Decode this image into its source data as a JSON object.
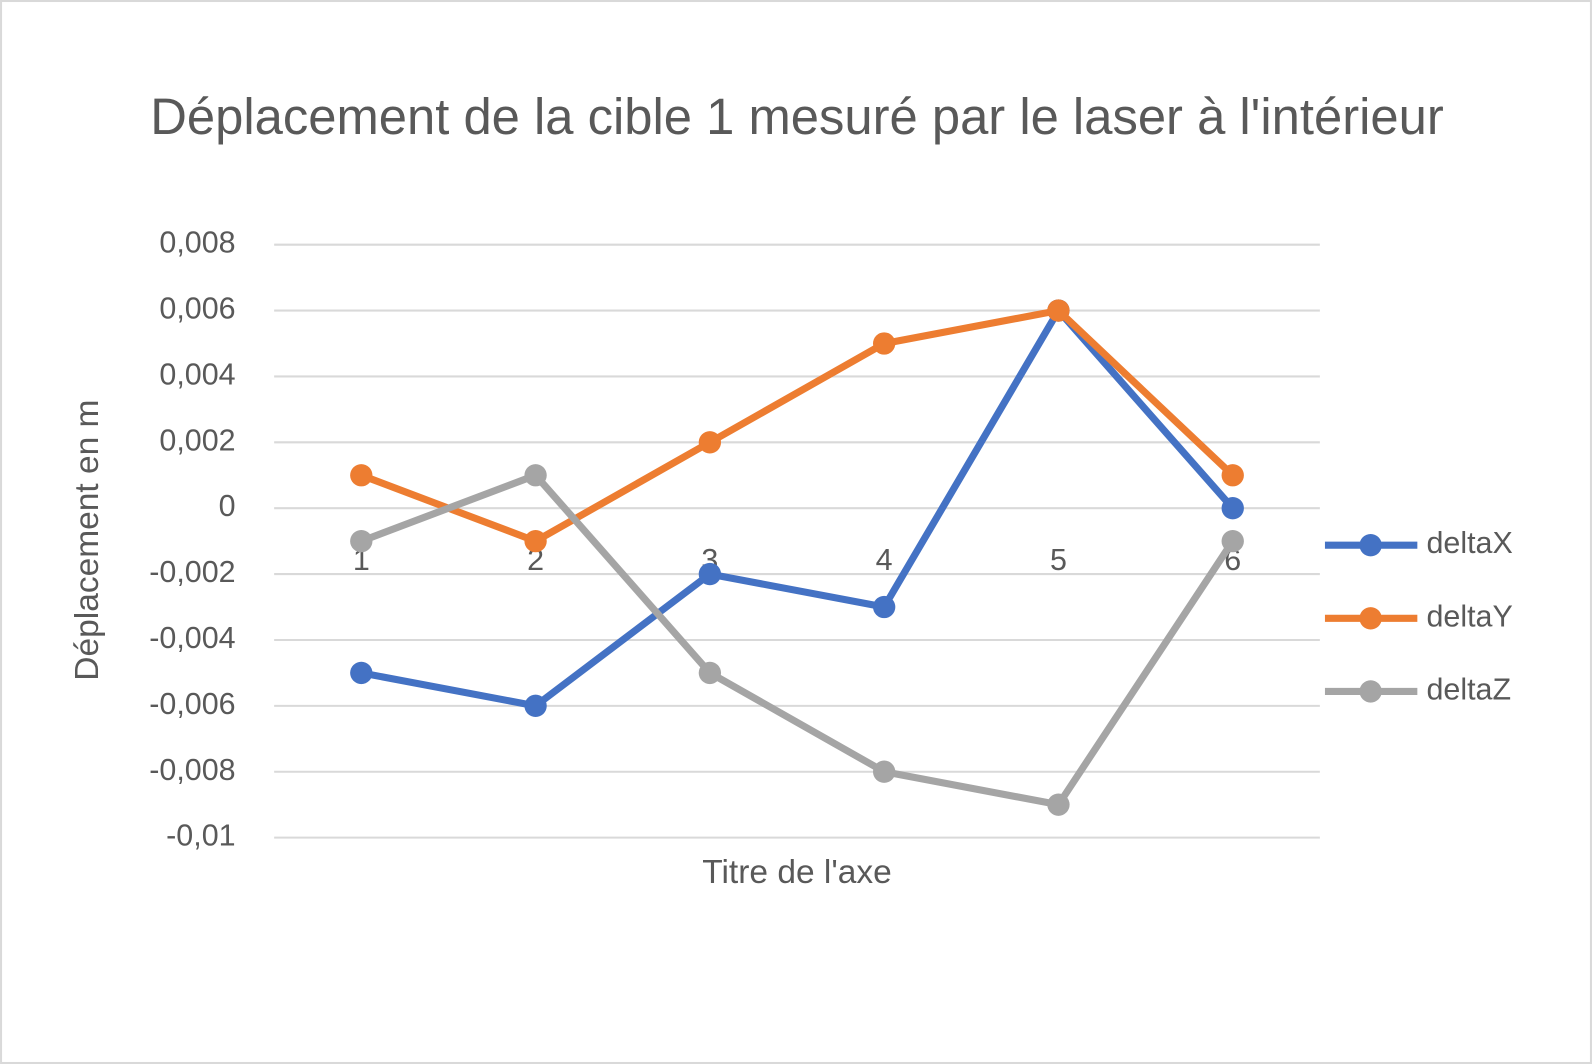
{
  "chart_data": {
    "type": "line",
    "title": "Déplacement de la cible 1 mesuré par le laser à l'intérieur",
    "y_label": "Déplacement en m",
    "x_label": "Titre de l'axe",
    "categories": [
      "1",
      "2",
      "3",
      "4",
      "5",
      "6"
    ],
    "series": [
      {
        "name": "deltaX",
        "color": "#4472c4",
        "values": [
          -0.005,
          -0.006,
          -0.002,
          -0.003,
          0.006,
          0
        ]
      },
      {
        "name": "deltaY",
        "color": "#ed7d31",
        "values": [
          0.001,
          -0.001,
          0.002,
          0.005,
          0.006,
          0.001
        ]
      },
      {
        "name": "deltaZ",
        "color": "#a5a5a5",
        "values": [
          -0.001,
          0.001,
          -0.005,
          -0.008,
          -0.009,
          -0.001
        ]
      }
    ],
    "ylim": [
      -0.01,
      0.008
    ],
    "yticks": [
      {
        "value": -0.01,
        "label": "-0,01"
      },
      {
        "value": -0.008,
        "label": "-0,008"
      },
      {
        "value": -0.006,
        "label": "-0,006"
      },
      {
        "value": -0.004,
        "label": "-0,004"
      },
      {
        "value": -0.002,
        "label": "-0,002"
      },
      0,
      {
        "value": 0.002,
        "label": "0,002"
      },
      {
        "value": 0.004,
        "label": "0,004"
      },
      {
        "value": 0.006,
        "label": "0,006"
      },
      {
        "value": 0.008,
        "label": "0,008"
      }
    ],
    "grid": true,
    "legend": "right"
  }
}
